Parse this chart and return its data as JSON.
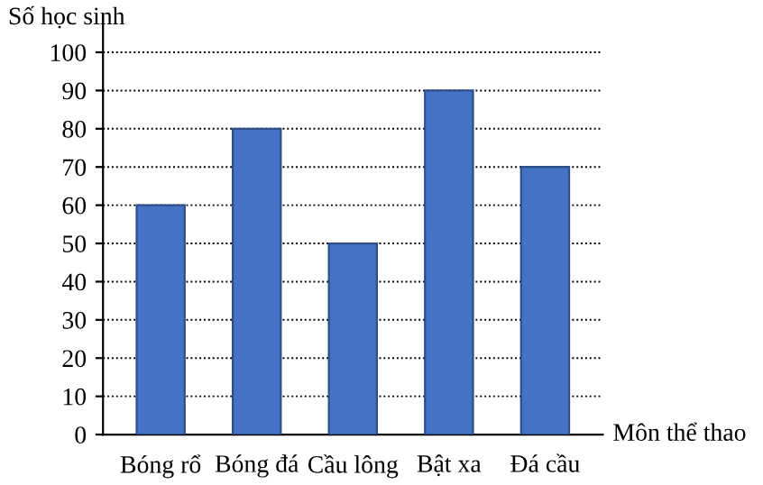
{
  "chart_data": {
    "type": "bar",
    "xlabel": "Môn thể thao",
    "ylabel": "Số học sinh",
    "categories": [
      "Bóng rổ",
      "Bóng đá",
      "Cầu lông",
      "Bật xa",
      "Đá cầu"
    ],
    "values": [
      60,
      80,
      50,
      90,
      70
    ],
    "color": "#4472c4",
    "ylim": [
      0,
      110
    ],
    "yticks": [
      0,
      10,
      20,
      30,
      40,
      50,
      60,
      70,
      80,
      90,
      100
    ],
    "grid": "y",
    "legend": false
  }
}
